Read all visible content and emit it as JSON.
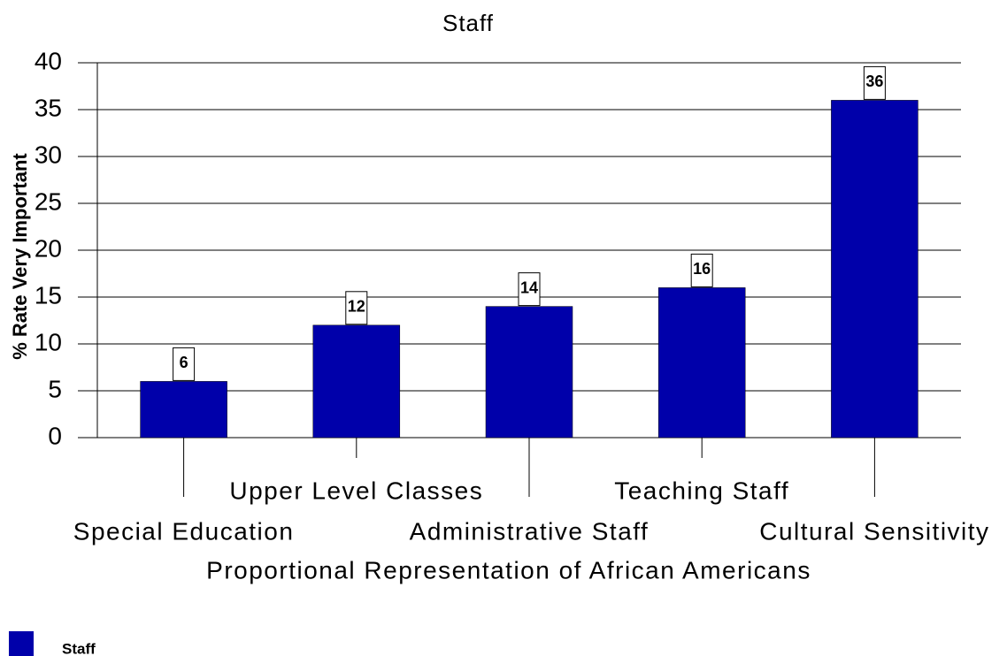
{
  "chart_data": {
    "type": "bar",
    "title": "Staff",
    "x_label": "Proportional Representation of African Americans",
    "y_label": "% Rate Very Important",
    "categories": [
      "Special Education",
      "Upper Level Classes",
      "Administrative Staff",
      "Teaching Staff",
      "Cultural Sensitivity"
    ],
    "series": [
      {
        "name": "Staff",
        "color": "#0000aa",
        "values": [
          6,
          12,
          14,
          16,
          36
        ]
      }
    ],
    "ylim": [
      0,
      40
    ],
    "yticks": [
      0,
      5,
      10,
      15,
      20,
      25,
      30,
      35,
      40
    ],
    "grid": true,
    "legend": "bottom-left"
  }
}
